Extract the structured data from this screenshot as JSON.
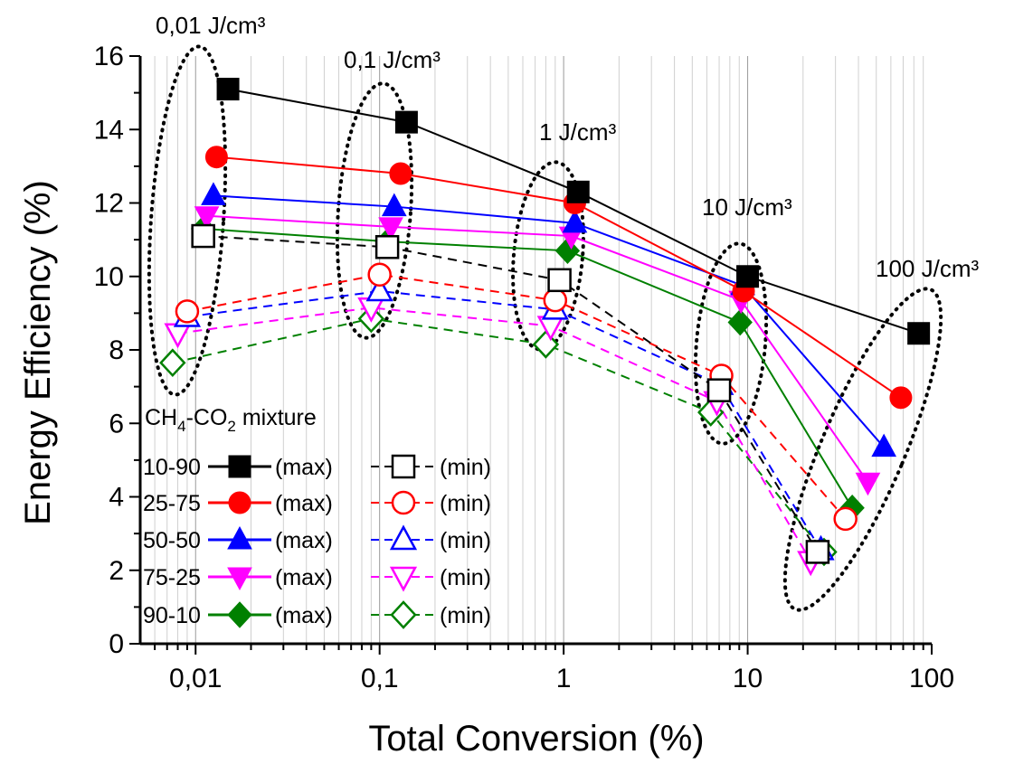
{
  "chart_data": {
    "type": "scatter",
    "xlabel": "Total Conversion (%)",
    "ylabel": "Energy Efficiency (%)",
    "xscale": "log",
    "xlim": [
      0.005,
      100
    ],
    "ylim": [
      0,
      16
    ],
    "grid": "vertical minor",
    "x_tick_labels": [
      "0,01",
      "0,1",
      "1",
      "10",
      "100"
    ],
    "y_tick_labels": [
      "0",
      "2",
      "4",
      "6",
      "8",
      "10",
      "12",
      "14",
      "16"
    ],
    "annotations": [
      "0,01 J/cm³",
      "0,1 J/cm³",
      "1 J/cm³",
      "10 J/cm³",
      "100 J/cm³"
    ],
    "legend": {
      "title_main": "CH",
      "title_sub1": "4",
      "title_mid": "-CO",
      "title_sub2": "2",
      "title_end": " mixture",
      "max_label": "(max)",
      "min_label": "(min)",
      "placement": "left"
    },
    "series": [
      {
        "mixture": "10-90",
        "color": "#000000",
        "marker": "square",
        "max": [
          [
            0.015,
            15.1
          ],
          [
            0.14,
            14.2
          ],
          [
            1.2,
            12.3
          ],
          [
            10,
            10.0
          ],
          [
            85,
            8.45
          ]
        ],
        "min": [
          [
            0.011,
            11.1
          ],
          [
            0.11,
            10.8
          ],
          [
            0.95,
            9.9
          ],
          [
            7,
            6.9
          ],
          [
            24,
            2.5
          ]
        ]
      },
      {
        "mixture": "25-75",
        "color": "#ff0000",
        "marker": "circle",
        "max": [
          [
            0.013,
            13.25
          ],
          [
            0.13,
            12.8
          ],
          [
            1.15,
            12.0
          ],
          [
            9.5,
            9.6
          ],
          [
            68,
            6.7
          ]
        ],
        "min": [
          [
            0.009,
            9.05
          ],
          [
            0.1,
            10.05
          ],
          [
            0.9,
            9.35
          ],
          [
            7.2,
            7.3
          ],
          [
            34,
            3.4
          ]
        ]
      },
      {
        "mixture": "50-50",
        "color": "#0000ff",
        "marker": "triangle-up",
        "max": [
          [
            0.0125,
            12.2
          ],
          [
            0.12,
            11.9
          ],
          [
            1.15,
            11.45
          ],
          [
            9.4,
            9.75
          ],
          [
            55,
            5.35
          ]
        ],
        "min": [
          [
            0.009,
            8.9
          ],
          [
            0.1,
            9.6
          ],
          [
            0.9,
            9.1
          ],
          [
            7.1,
            7.05
          ],
          [
            25,
            2.55
          ]
        ]
      },
      {
        "mixture": "75-25",
        "color": "#ff00ff",
        "marker": "triangle-down",
        "max": [
          [
            0.0115,
            11.65
          ],
          [
            0.115,
            11.35
          ],
          [
            1.1,
            11.1
          ],
          [
            9.2,
            9.35
          ],
          [
            45,
            4.4
          ]
        ],
        "min": [
          [
            0.008,
            8.45
          ],
          [
            0.09,
            9.15
          ],
          [
            0.85,
            8.65
          ],
          [
            6.8,
            6.6
          ],
          [
            22,
            2.25
          ]
        ]
      },
      {
        "mixture": "90-10",
        "color": "#008000",
        "marker": "diamond",
        "max": [
          [
            0.011,
            11.3
          ],
          [
            0.11,
            10.95
          ],
          [
            1.05,
            10.7
          ],
          [
            9.1,
            8.75
          ],
          [
            37,
            3.7
          ]
        ],
        "min": [
          [
            0.0075,
            7.65
          ],
          [
            0.09,
            8.85
          ],
          [
            0.8,
            8.15
          ],
          [
            6.3,
            6.3
          ],
          [
            26,
            2.5
          ]
        ]
      }
    ]
  }
}
